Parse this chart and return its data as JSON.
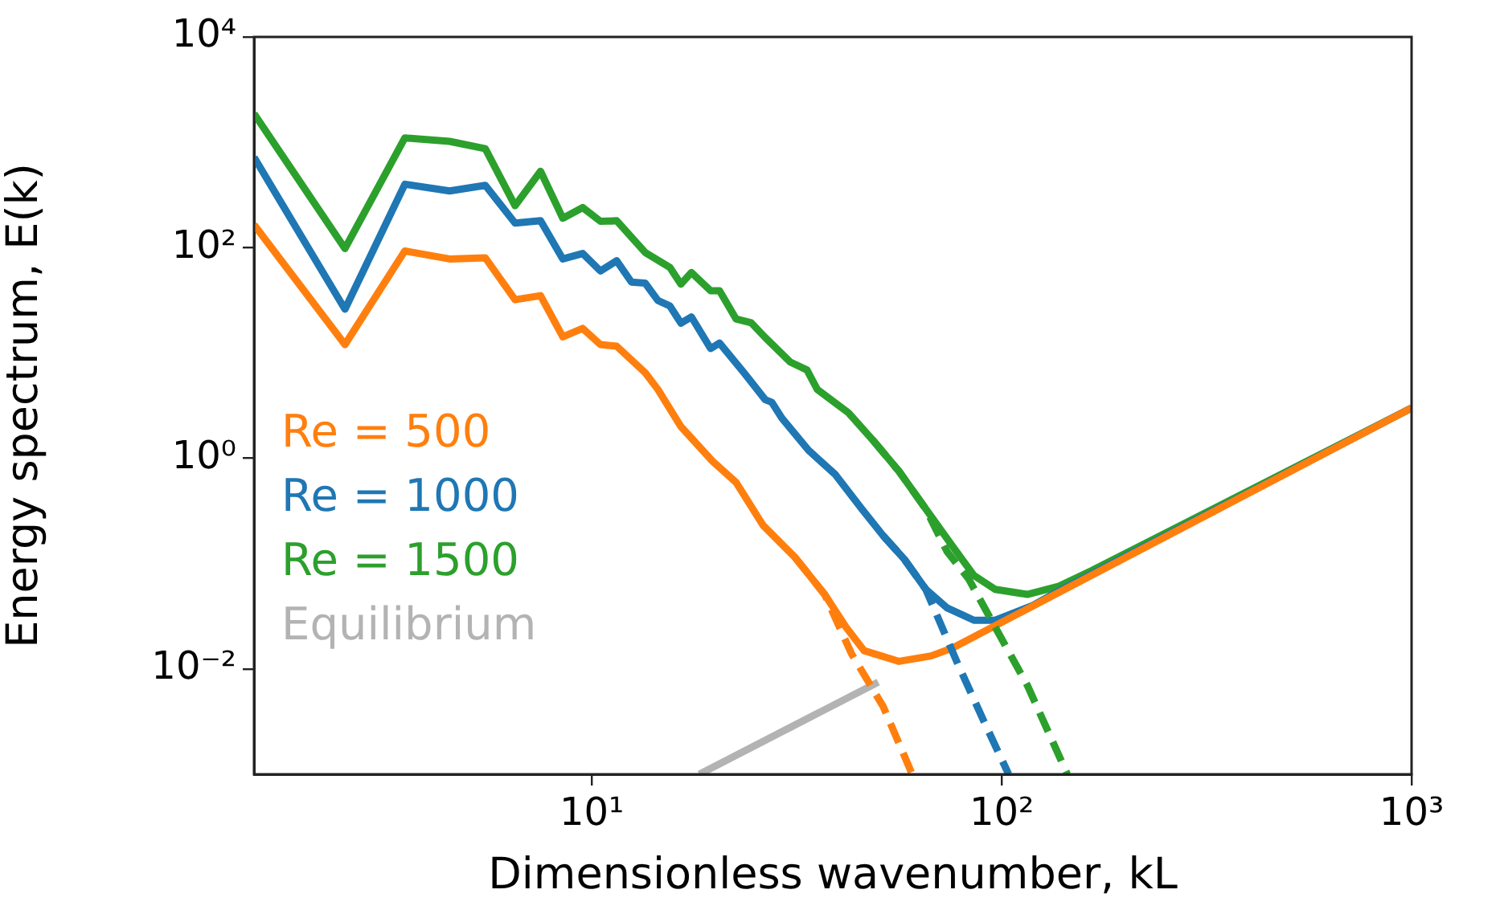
{
  "chart_data": {
    "type": "line",
    "xlabel": "Dimensionless wavenumber, kL",
    "ylabel": "Energy spectrum, E(k)",
    "log": "xy",
    "legend": "left",
    "marker": "none",
    "xlim": [
      1.5,
      1000
    ],
    "xticks": [
      {
        "value": 10,
        "label": "10¹"
      },
      {
        "value": 100,
        "label": "10²"
      },
      {
        "value": 1000,
        "label": "10³"
      }
    ],
    "ylim": [
      0.001,
      10000
    ],
    "yticks": [
      {
        "value": 0.01,
        "label": "10⁻²"
      },
      {
        "value": 1,
        "label": "10⁰"
      },
      {
        "value": 100,
        "label": "10²"
      },
      {
        "value": 10000,
        "label": "10⁴"
      }
    ],
    "series": [
      {
        "color": "#ff7f0e",
        "line_style": "dashed",
        "x": [
          31.3,
          37,
          43,
          51.4,
          60.5
        ],
        "values": [
          0.115,
          0.051,
          0.014,
          0.0044,
          0.001
        ]
      },
      {
        "color": "#1f77b4",
        "line_style": "dashed",
        "x": [
          51.4,
          58,
          65.3,
          78.2,
          90.8,
          104
        ],
        "values": [
          0.184,
          0.109,
          0.057,
          0.0111,
          0.0031,
          0.001
        ]
      },
      {
        "color": "#2ca02c",
        "line_style": "dashed",
        "x": [
          48.4,
          56.2,
          65.3,
          73.6,
          83,
          96.4,
          115.5,
          144.6
        ],
        "values": [
          1.5,
          0.75,
          0.33,
          0.13,
          0.072,
          0.025,
          0.007,
          0.001
        ]
      },
      {
        "name": "Re = 500",
        "color": "#ff7f0e",
        "line_style": "solid",
        "x": [
          1.5,
          2.5,
          3.5,
          4.5,
          5.5,
          6.5,
          7.5,
          8.5,
          9.5,
          10.5,
          11.5,
          13.5,
          14.5,
          16.5,
          19.7,
          22.5,
          26.2,
          31.3,
          37,
          41.7,
          46.2,
          56.2,
          67.3,
          75.9,
          1000
        ],
        "values": [
          165,
          12,
          93,
          78,
          80,
          32,
          35,
          14.2,
          17.1,
          12,
          11.6,
          6.5,
          4.5,
          2,
          0.94,
          0.59,
          0.23,
          0.115,
          0.051,
          0.025,
          0.0149,
          0.0118,
          0.0133,
          0.0158,
          3
        ]
      },
      {
        "name": "Re = 1000",
        "color": "#1f77b4",
        "line_style": "solid",
        "x": [
          1.5,
          2.5,
          3.5,
          4.5,
          5.5,
          6.5,
          7.5,
          8.5,
          9.5,
          10.5,
          11.5,
          12.5,
          13.5,
          14.5,
          15.5,
          16.5,
          17.5,
          19.5,
          20.5,
          23.5,
          26.5,
          27.5,
          29.1,
          33.8,
          39.3,
          45.6,
          51.4,
          58,
          65.3,
          73.6,
          85.6,
          96.4,
          119,
          138,
          1000
        ],
        "values": [
          720,
          26,
          400,
          345,
          390,
          171,
          180,
          78,
          88,
          60,
          75,
          47,
          46,
          31.5,
          28,
          19.2,
          22,
          11,
          12.4,
          6.5,
          3.6,
          3.4,
          2.4,
          1.19,
          0.7,
          0.33,
          0.184,
          0.109,
          0.057,
          0.038,
          0.029,
          0.029,
          0.04,
          0.055,
          3
        ]
      },
      {
        "name": "Re = 1500",
        "color": "#2ca02c",
        "line_style": "solid",
        "x": [
          1.5,
          2.5,
          3.5,
          4.5,
          5.5,
          6.5,
          7.5,
          8.5,
          9.5,
          10.5,
          11.5,
          13.5,
          15.5,
          16.5,
          17.5,
          19.5,
          20.5,
          22.5,
          24.5,
          26.5,
          30.5,
          33.5,
          35.5,
          42.3,
          48.4,
          56.2,
          65.3,
          75.9,
          85.6,
          96.4,
          115.5,
          138,
          166,
          1000
        ],
        "values": [
          1870,
          98,
          1100,
          1020,
          870,
          250,
          530,
          190,
          240,
          178,
          180,
          90,
          65,
          45,
          58,
          39,
          39,
          21,
          19.3,
          14,
          8.2,
          6.9,
          4.5,
          2.7,
          1.5,
          0.75,
          0.33,
          0.146,
          0.077,
          0.057,
          0.051,
          0.061,
          0.086,
          3
        ]
      },
      {
        "name": "Equilibrium",
        "color": "#b3b3b3",
        "line_style": "solid",
        "x": [
          18.3,
          50
        ],
        "values": [
          0.001,
          0.0075
        ]
      }
    ]
  }
}
